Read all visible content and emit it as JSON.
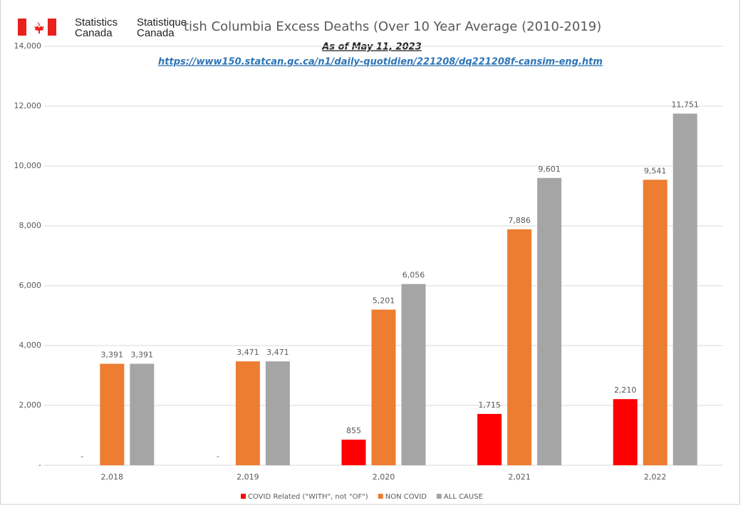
{
  "logo": {
    "english": [
      "Statistics",
      "Canada"
    ],
    "french": [
      "Statistique",
      "Canada"
    ]
  },
  "chart_data": {
    "type": "bar",
    "title": "tish Columbia Excess Deaths (Over 10 Year Average (2010-2019)",
    "subtitle": "As of May 11, 2023",
    "source_link": "https://www150.statcan.gc.ca/n1/daily-quotidien/221208/dq221208f-cansim-eng.htm",
    "categories": [
      "2,018",
      "2,019",
      "2,020",
      "2,021",
      "2,022"
    ],
    "series": [
      {
        "name": "COVID Related (\"WITH\", not \"OF\")",
        "color": "#ff0000",
        "values": [
          0,
          0,
          855,
          1715,
          2210
        ],
        "value_labels": [
          "-",
          "-",
          "855",
          "1,715",
          "2,210"
        ]
      },
      {
        "name": "NON COVID",
        "color": "#ed7d31",
        "values": [
          3391,
          3471,
          5201,
          7886,
          9541
        ],
        "value_labels": [
          "3,391",
          "3,471",
          "5,201",
          "7,886",
          "9,541"
        ]
      },
      {
        "name": "ALL CAUSE",
        "color": "#a5a5a5",
        "values": [
          3391,
          3471,
          6056,
          9601,
          11751
        ],
        "value_labels": [
          "3,391",
          "3,471",
          "6,056",
          "9,601",
          "11,751"
        ]
      }
    ],
    "ylim": [
      0,
      14000
    ],
    "yticks": [
      {
        "value": 0,
        "label": "-"
      },
      {
        "value": 2000,
        "label": "2,000"
      },
      {
        "value": 4000,
        "label": "4,000"
      },
      {
        "value": 6000,
        "label": "6,000"
      },
      {
        "value": 8000,
        "label": "8,000"
      },
      {
        "value": 10000,
        "label": "10,000"
      },
      {
        "value": 12000,
        "label": "12,000"
      },
      {
        "value": 14000,
        "label": "14,000"
      }
    ],
    "grid": true,
    "legend": "bottom"
  }
}
